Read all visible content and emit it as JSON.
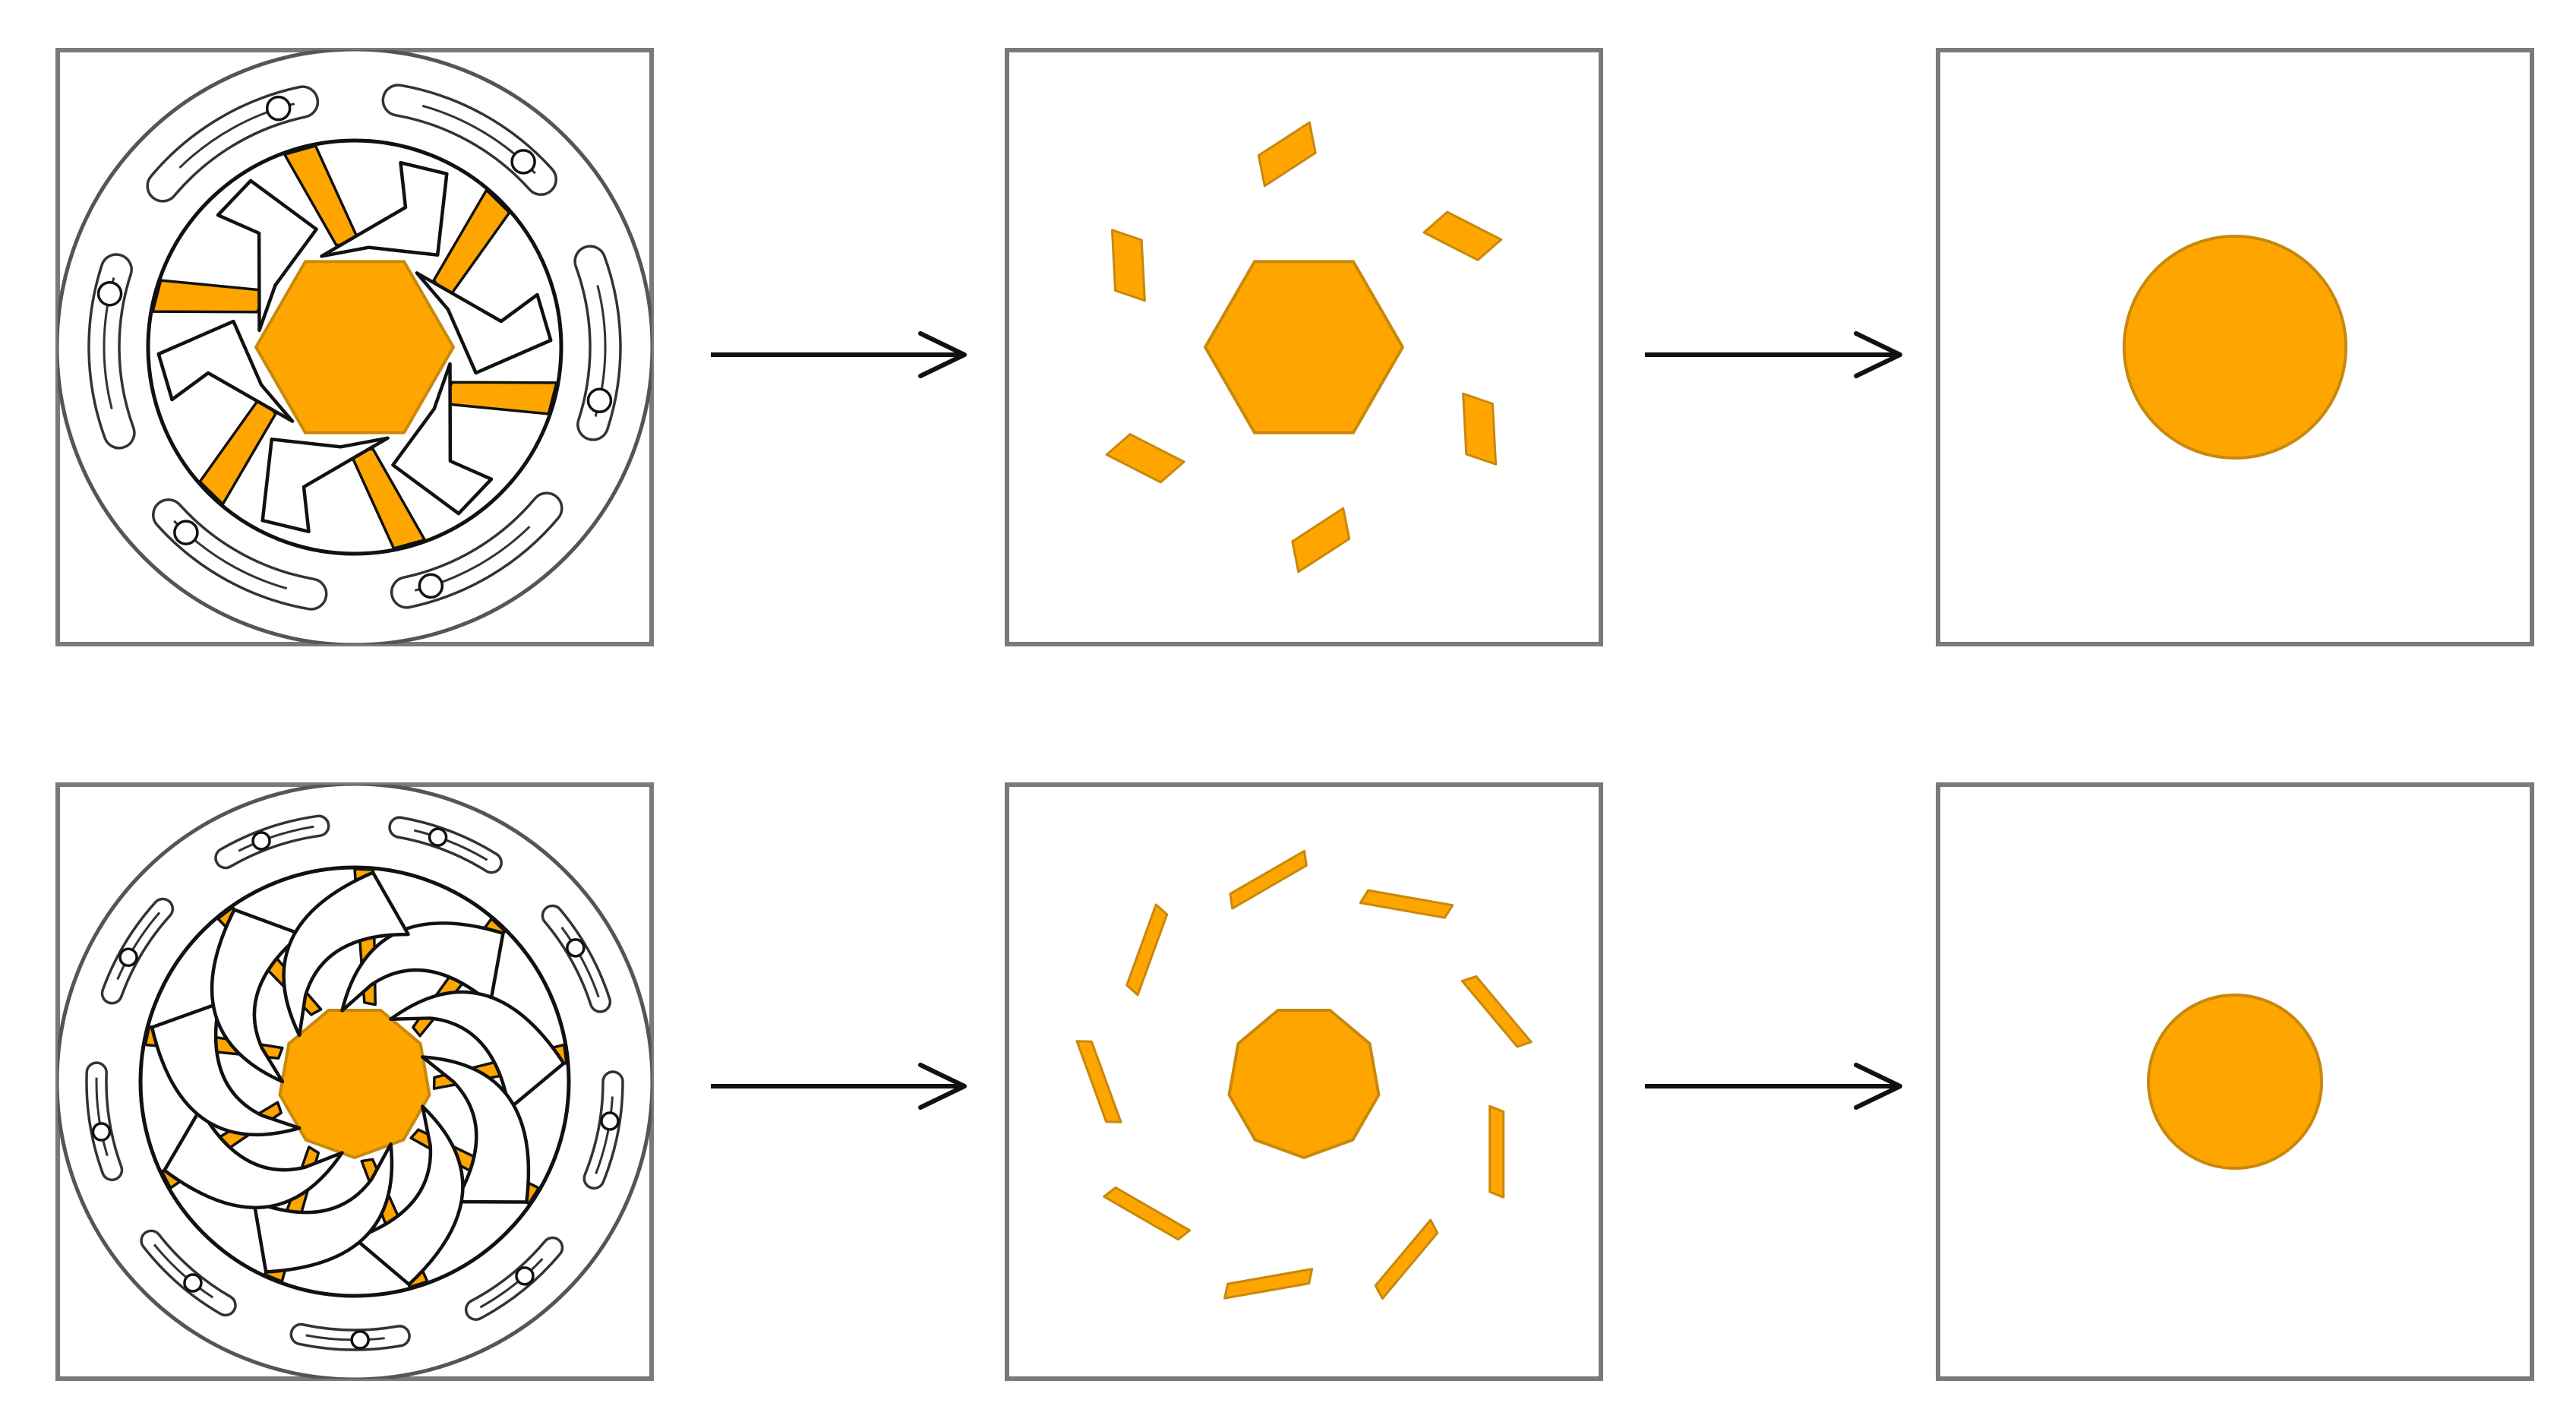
{
  "colors": {
    "fill": "#ffa500",
    "fill_stroke": "#c8880c",
    "outline": "#111111",
    "frame": "#7a7a7a"
  },
  "rows": [
    {
      "name": "hexagonal-aperture",
      "blade_count": 6,
      "aperture_sides": 6,
      "panels": [
        "assembled-mechanism",
        "exploded-fragments",
        "resulting-circle"
      ]
    },
    {
      "name": "nonagonal-aperture",
      "blade_count": 9,
      "aperture_sides": 9,
      "panels": [
        "assembled-mechanism",
        "exploded-fragments",
        "resulting-circle"
      ]
    }
  ],
  "arrows": [
    "transition-1",
    "transition-2"
  ]
}
